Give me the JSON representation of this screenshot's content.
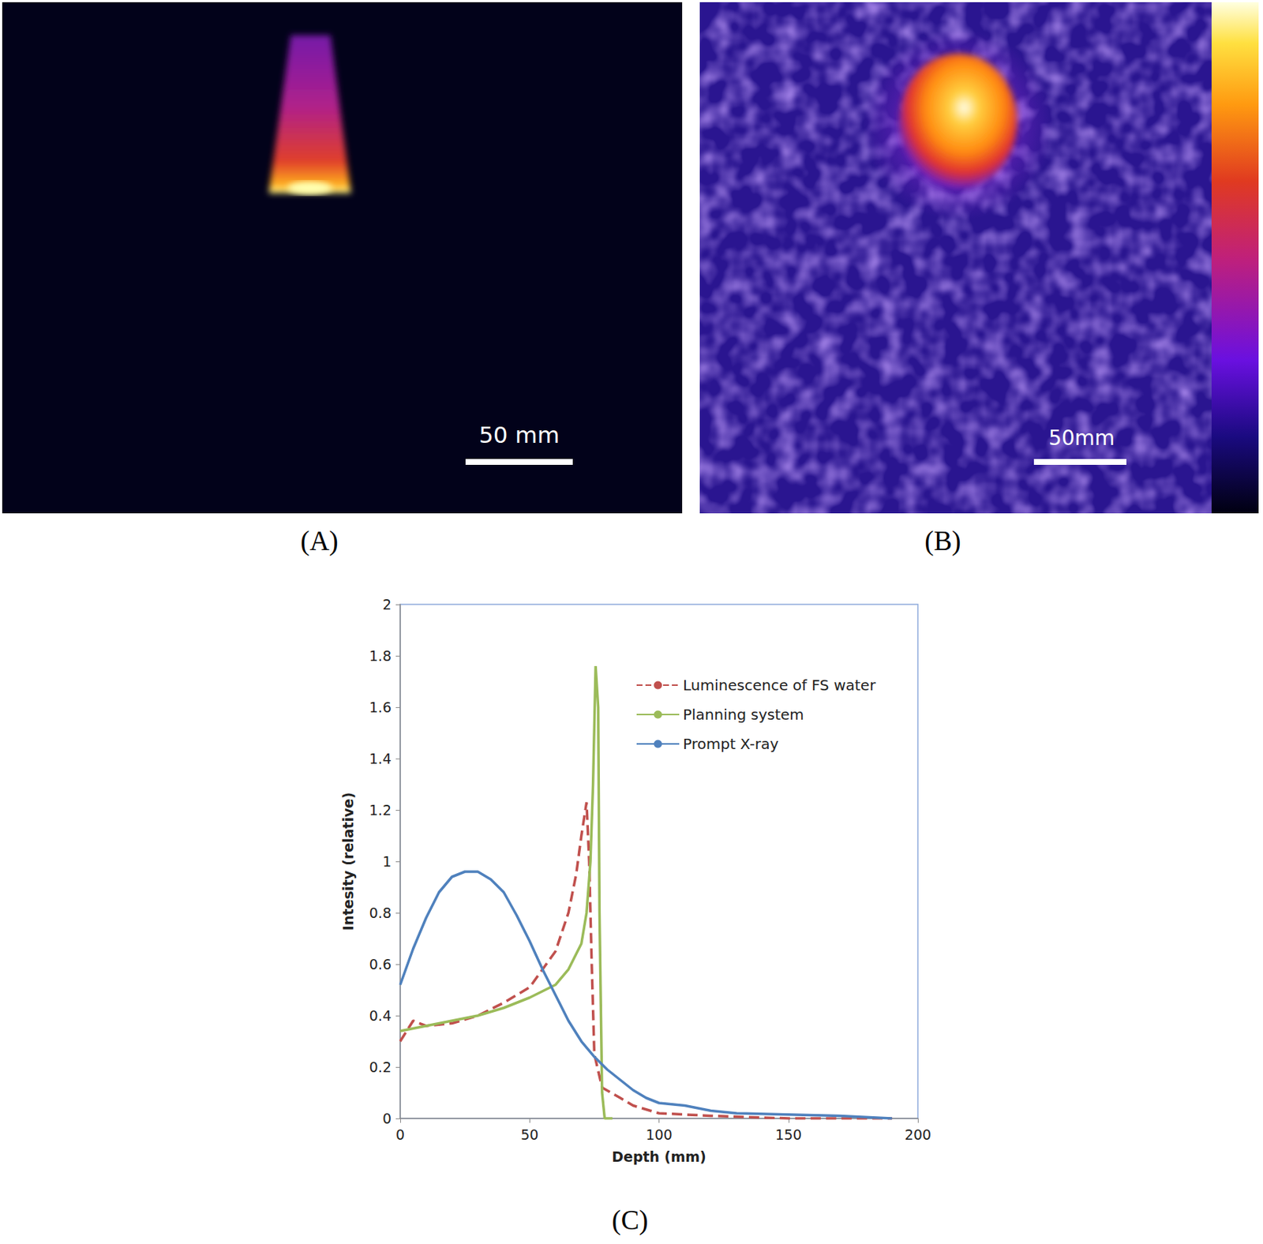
{
  "panels": {
    "A": {
      "label": "(A)",
      "scale_bar": "50 mm"
    },
    "B": {
      "label": "(B)",
      "scale_bar": "50mm"
    },
    "C": {
      "label": "(C)"
    }
  },
  "chart_data": {
    "type": "line",
    "x_label": "Depth (mm)",
    "y_label": "Intesity (relative)",
    "xlim": [
      0,
      200
    ],
    "xticks": [
      0,
      50,
      100,
      150,
      200
    ],
    "ylim": [
      0,
      2
    ],
    "yticks": [
      0,
      0.2,
      0.4,
      0.6,
      0.8,
      1,
      1.2,
      1.4,
      1.6,
      1.8,
      2
    ],
    "grid": false,
    "legend": "upper right",
    "series": [
      {
        "name": "Luminescence of FS water",
        "color": "#c0504d",
        "line_style": "dashed",
        "x": [
          0,
          5,
          10,
          20,
          30,
          40,
          50,
          55,
          60,
          65,
          68,
          70,
          72,
          73,
          74,
          75,
          78,
          85,
          90,
          100,
          120,
          150,
          190
        ],
        "values": [
          0.3,
          0.38,
          0.36,
          0.37,
          0.4,
          0.45,
          0.51,
          0.58,
          0.65,
          0.8,
          0.95,
          1.1,
          1.23,
          1.0,
          0.6,
          0.25,
          0.12,
          0.08,
          0.05,
          0.02,
          0.01,
          0,
          0
        ]
      },
      {
        "name": "Planning system",
        "color": "#9bbb59",
        "line_style": "solid",
        "x": [
          0,
          10,
          20,
          30,
          40,
          50,
          60,
          65,
          70,
          72,
          73.5,
          74.5,
          75.5,
          76.5,
          77,
          78,
          79,
          82
        ],
        "values": [
          0.34,
          0.36,
          0.38,
          0.4,
          0.43,
          0.47,
          0.52,
          0.58,
          0.68,
          0.8,
          1.0,
          1.3,
          1.76,
          1.6,
          0.8,
          0.1,
          0,
          0
        ]
      },
      {
        "name": "Prompt X-ray",
        "color": "#4f81bd",
        "line_style": "solid",
        "x": [
          0,
          5,
          10,
          15,
          20,
          25,
          30,
          35,
          40,
          45,
          50,
          55,
          60,
          65,
          70,
          75,
          80,
          85,
          90,
          95,
          100,
          110,
          120,
          130,
          150,
          170,
          190
        ],
        "values": [
          0.52,
          0.66,
          0.78,
          0.88,
          0.94,
          0.96,
          0.96,
          0.93,
          0.88,
          0.79,
          0.69,
          0.58,
          0.48,
          0.38,
          0.3,
          0.24,
          0.19,
          0.15,
          0.11,
          0.08,
          0.06,
          0.05,
          0.03,
          0.02,
          0.015,
          0.01,
          0
        ]
      }
    ]
  }
}
